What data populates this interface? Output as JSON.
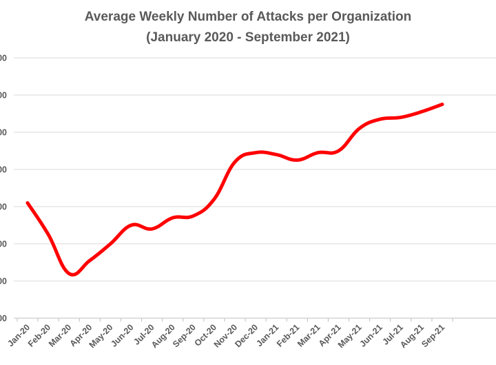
{
  "chart_data": {
    "type": "line",
    "title": "Average Weekly Number of Attacks per Organization",
    "subtitle": "(January 2020 - September 2021)",
    "xlabel": "",
    "ylabel": "",
    "categories": [
      "Jan-20",
      "Feb-20",
      "Mar-20",
      "Apr-20",
      "May-20",
      "Jun-20",
      "Jul-20",
      "Aug-20",
      "Sep-20",
      "Oct-20",
      "Nov-20",
      "Dec-20",
      "Jan-21",
      "Feb-21",
      "Mar-21",
      "Apr-21",
      "May-21",
      "Jun-21",
      "Jul-21",
      "Aug-21",
      "Sep-21"
    ],
    "y_tick_labels": [
      "00",
      "00",
      "00",
      "00",
      "00",
      "00",
      "00",
      "00"
    ],
    "series": [
      {
        "values": [
          310,
          225,
          120,
          155,
          200,
          250,
          240,
          270,
          275,
          320,
          420,
          445,
          440,
          425,
          445,
          450,
          510,
          535,
          540,
          555,
          575
        ],
        "color": "#ff0000"
      }
    ],
    "ylim": [
      0,
      700
    ],
    "grid": true,
    "legend": "none"
  }
}
